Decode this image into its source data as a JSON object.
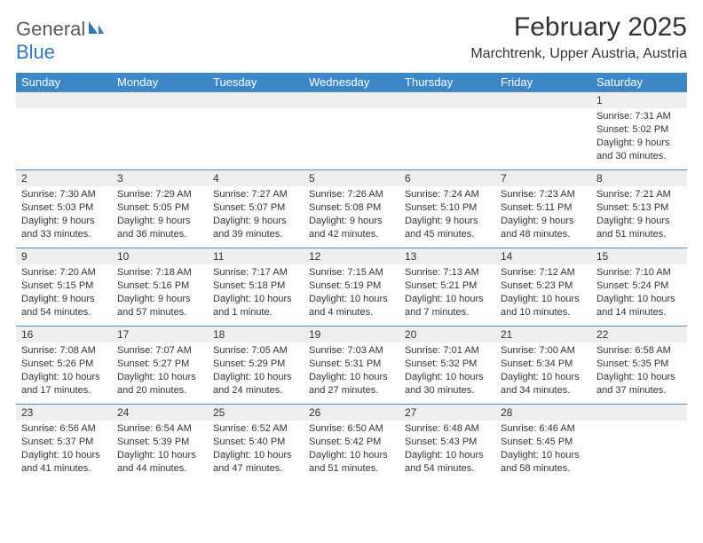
{
  "brand": {
    "part1": "General",
    "part2": "Blue"
  },
  "title": "February 2025",
  "location": "Marchtrenk, Upper Austria, Austria",
  "colors": {
    "header_bg": "#3c87c7",
    "header_text": "#ffffff",
    "daynum_bg": "#eeeeee",
    "row_border": "#5b8bb5",
    "brand_gray": "#5a5a5a",
    "brand_blue": "#2f78bf"
  },
  "weekdays": [
    "Sunday",
    "Monday",
    "Tuesday",
    "Wednesday",
    "Thursday",
    "Friday",
    "Saturday"
  ],
  "weeks": [
    [
      {
        "n": "",
        "sr": "",
        "ss": "",
        "dl": ""
      },
      {
        "n": "",
        "sr": "",
        "ss": "",
        "dl": ""
      },
      {
        "n": "",
        "sr": "",
        "ss": "",
        "dl": ""
      },
      {
        "n": "",
        "sr": "",
        "ss": "",
        "dl": ""
      },
      {
        "n": "",
        "sr": "",
        "ss": "",
        "dl": ""
      },
      {
        "n": "",
        "sr": "",
        "ss": "",
        "dl": ""
      },
      {
        "n": "1",
        "sr": "Sunrise: 7:31 AM",
        "ss": "Sunset: 5:02 PM",
        "dl": "Daylight: 9 hours and 30 minutes."
      }
    ],
    [
      {
        "n": "2",
        "sr": "Sunrise: 7:30 AM",
        "ss": "Sunset: 5:03 PM",
        "dl": "Daylight: 9 hours and 33 minutes."
      },
      {
        "n": "3",
        "sr": "Sunrise: 7:29 AM",
        "ss": "Sunset: 5:05 PM",
        "dl": "Daylight: 9 hours and 36 minutes."
      },
      {
        "n": "4",
        "sr": "Sunrise: 7:27 AM",
        "ss": "Sunset: 5:07 PM",
        "dl": "Daylight: 9 hours and 39 minutes."
      },
      {
        "n": "5",
        "sr": "Sunrise: 7:26 AM",
        "ss": "Sunset: 5:08 PM",
        "dl": "Daylight: 9 hours and 42 minutes."
      },
      {
        "n": "6",
        "sr": "Sunrise: 7:24 AM",
        "ss": "Sunset: 5:10 PM",
        "dl": "Daylight: 9 hours and 45 minutes."
      },
      {
        "n": "7",
        "sr": "Sunrise: 7:23 AM",
        "ss": "Sunset: 5:11 PM",
        "dl": "Daylight: 9 hours and 48 minutes."
      },
      {
        "n": "8",
        "sr": "Sunrise: 7:21 AM",
        "ss": "Sunset: 5:13 PM",
        "dl": "Daylight: 9 hours and 51 minutes."
      }
    ],
    [
      {
        "n": "9",
        "sr": "Sunrise: 7:20 AM",
        "ss": "Sunset: 5:15 PM",
        "dl": "Daylight: 9 hours and 54 minutes."
      },
      {
        "n": "10",
        "sr": "Sunrise: 7:18 AM",
        "ss": "Sunset: 5:16 PM",
        "dl": "Daylight: 9 hours and 57 minutes."
      },
      {
        "n": "11",
        "sr": "Sunrise: 7:17 AM",
        "ss": "Sunset: 5:18 PM",
        "dl": "Daylight: 10 hours and 1 minute."
      },
      {
        "n": "12",
        "sr": "Sunrise: 7:15 AM",
        "ss": "Sunset: 5:19 PM",
        "dl": "Daylight: 10 hours and 4 minutes."
      },
      {
        "n": "13",
        "sr": "Sunrise: 7:13 AM",
        "ss": "Sunset: 5:21 PM",
        "dl": "Daylight: 10 hours and 7 minutes."
      },
      {
        "n": "14",
        "sr": "Sunrise: 7:12 AM",
        "ss": "Sunset: 5:23 PM",
        "dl": "Daylight: 10 hours and 10 minutes."
      },
      {
        "n": "15",
        "sr": "Sunrise: 7:10 AM",
        "ss": "Sunset: 5:24 PM",
        "dl": "Daylight: 10 hours and 14 minutes."
      }
    ],
    [
      {
        "n": "16",
        "sr": "Sunrise: 7:08 AM",
        "ss": "Sunset: 5:26 PM",
        "dl": "Daylight: 10 hours and 17 minutes."
      },
      {
        "n": "17",
        "sr": "Sunrise: 7:07 AM",
        "ss": "Sunset: 5:27 PM",
        "dl": "Daylight: 10 hours and 20 minutes."
      },
      {
        "n": "18",
        "sr": "Sunrise: 7:05 AM",
        "ss": "Sunset: 5:29 PM",
        "dl": "Daylight: 10 hours and 24 minutes."
      },
      {
        "n": "19",
        "sr": "Sunrise: 7:03 AM",
        "ss": "Sunset: 5:31 PM",
        "dl": "Daylight: 10 hours and 27 minutes."
      },
      {
        "n": "20",
        "sr": "Sunrise: 7:01 AM",
        "ss": "Sunset: 5:32 PM",
        "dl": "Daylight: 10 hours and 30 minutes."
      },
      {
        "n": "21",
        "sr": "Sunrise: 7:00 AM",
        "ss": "Sunset: 5:34 PM",
        "dl": "Daylight: 10 hours and 34 minutes."
      },
      {
        "n": "22",
        "sr": "Sunrise: 6:58 AM",
        "ss": "Sunset: 5:35 PM",
        "dl": "Daylight: 10 hours and 37 minutes."
      }
    ],
    [
      {
        "n": "23",
        "sr": "Sunrise: 6:56 AM",
        "ss": "Sunset: 5:37 PM",
        "dl": "Daylight: 10 hours and 41 minutes."
      },
      {
        "n": "24",
        "sr": "Sunrise: 6:54 AM",
        "ss": "Sunset: 5:39 PM",
        "dl": "Daylight: 10 hours and 44 minutes."
      },
      {
        "n": "25",
        "sr": "Sunrise: 6:52 AM",
        "ss": "Sunset: 5:40 PM",
        "dl": "Daylight: 10 hours and 47 minutes."
      },
      {
        "n": "26",
        "sr": "Sunrise: 6:50 AM",
        "ss": "Sunset: 5:42 PM",
        "dl": "Daylight: 10 hours and 51 minutes."
      },
      {
        "n": "27",
        "sr": "Sunrise: 6:48 AM",
        "ss": "Sunset: 5:43 PM",
        "dl": "Daylight: 10 hours and 54 minutes."
      },
      {
        "n": "28",
        "sr": "Sunrise: 6:46 AM",
        "ss": "Sunset: 5:45 PM",
        "dl": "Daylight: 10 hours and 58 minutes."
      },
      {
        "n": "",
        "sr": "",
        "ss": "",
        "dl": ""
      }
    ]
  ]
}
